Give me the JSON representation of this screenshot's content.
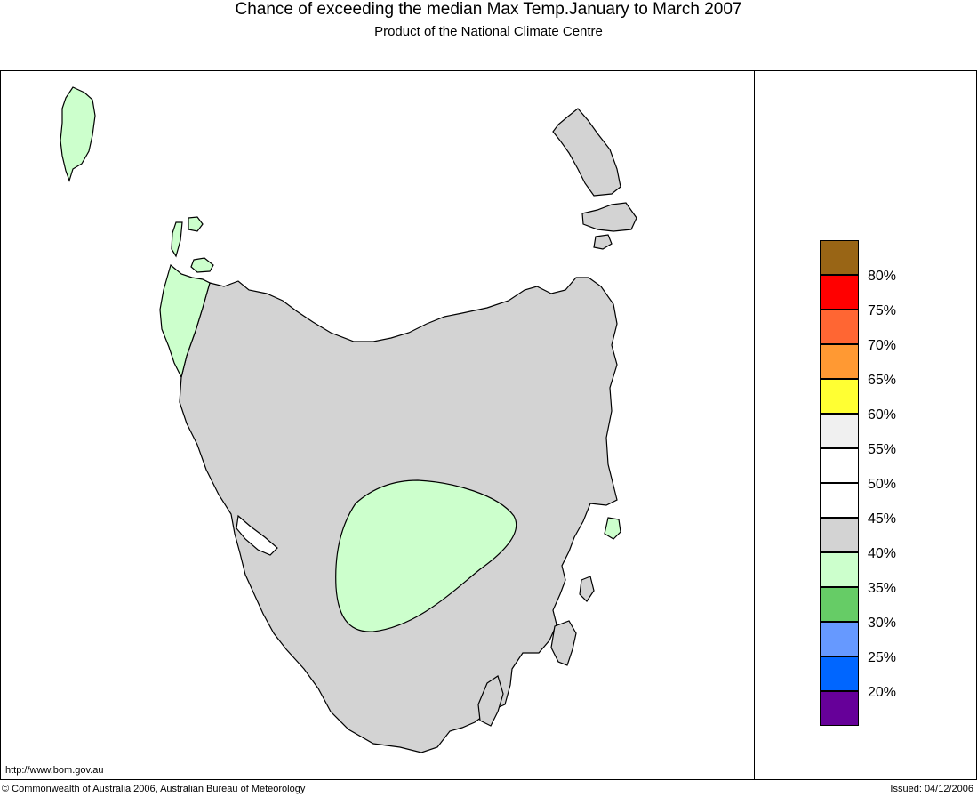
{
  "header": {
    "title": "Chance of exceeding the median Max Temp.January to March 2007",
    "subtitle": "Product of the National Climate Centre"
  },
  "legend": {
    "items": [
      {
        "color": "#996515"
      },
      {
        "color": "#ff0000",
        "label": "80%"
      },
      {
        "color": "#ff6633",
        "label": "75%"
      },
      {
        "color": "#ff9933",
        "label": "70%"
      },
      {
        "color": "#ffff33",
        "label": "65%"
      },
      {
        "color": "#f0f0f0",
        "label": "60%"
      },
      {
        "color": "#ffffff",
        "label": "55%"
      },
      {
        "color": "#ffffff",
        "label": "50%"
      },
      {
        "color": "#d3d3d3",
        "label": "45%"
      },
      {
        "color": "#ccffcc",
        "label": "40%"
      },
      {
        "color": "#66cc66",
        "label": "35%"
      },
      {
        "color": "#6699ff",
        "label": "30%"
      },
      {
        "color": "#0066ff",
        "label": "25%"
      },
      {
        "color": "#660099",
        "label": "20%"
      }
    ]
  },
  "map": {
    "region_colors": {
      "mainland": "#d3d3d3",
      "below_40": "#ccffcc"
    }
  },
  "footer": {
    "url": "http://www.bom.gov.au",
    "copyright": "© Commonwealth of Australia 2006, Australian Bureau of Meteorology",
    "issued": "Issued: 04/12/2006"
  }
}
